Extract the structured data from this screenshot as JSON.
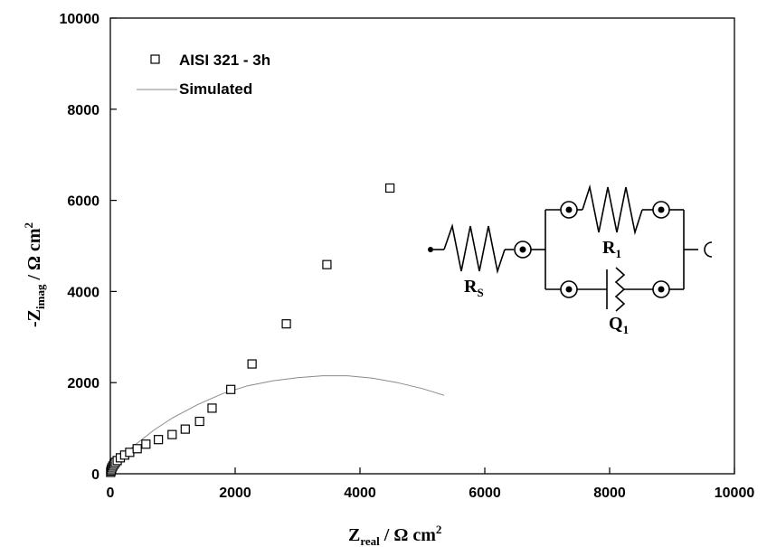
{
  "chart_data": {
    "type": "scatter",
    "xlabel": {
      "main": "Z",
      "sub": "real",
      "unit": " / Ω cm",
      "sup": "2"
    },
    "ylabel": {
      "main": "-Z",
      "sub": "imag",
      "unit": " / Ω cm",
      "sup": "2"
    },
    "xlim": [
      0,
      10000
    ],
    "ylim": [
      0,
      10000
    ],
    "xticks": [
      0,
      2000,
      4000,
      6000,
      8000,
      10000
    ],
    "yticks": [
      0,
      2000,
      4000,
      6000,
      8000,
      10000
    ],
    "xtick_labels": [
      "0",
      "2000",
      "4000",
      "6000",
      "8000",
      "10000"
    ],
    "ytick_labels": [
      "0",
      "2000",
      "4000",
      "6000",
      "8000",
      "10000"
    ],
    "grid": false,
    "legend_position": "top-left",
    "series": [
      {
        "name": "AISI 321 - 3h",
        "marker": "open-square",
        "x": [
          5,
          10,
          15,
          25,
          40,
          60,
          80,
          110,
          160,
          230,
          310,
          430,
          570,
          770,
          990,
          1200,
          1430,
          1630,
          1930,
          2270,
          2820,
          3470,
          4480
        ],
        "y": [
          30,
          60,
          90,
          130,
          170,
          210,
          250,
          290,
          350,
          410,
          470,
          550,
          650,
          750,
          860,
          980,
          1150,
          1440,
          1850,
          2410,
          3290,
          4590,
          6270
        ]
      },
      {
        "name": "Simulated",
        "line": "thin-grey",
        "x": [
          0,
          50,
          100,
          200,
          400,
          700,
          1000,
          1400,
          1800,
          2200,
          2600,
          3000,
          3400,
          3800,
          4200,
          4600,
          5000,
          5350
        ],
        "y": [
          0,
          150,
          250,
          400,
          640,
          960,
          1230,
          1520,
          1760,
          1930,
          2040,
          2110,
          2150,
          2150,
          2100,
          2000,
          1870,
          1720
        ]
      }
    ],
    "inset_circuit": {
      "labels": [
        {
          "main": "R",
          "sub": "S"
        },
        {
          "main": "R",
          "sub": "1"
        },
        {
          "main": "Q",
          "sub": "1"
        }
      ]
    }
  }
}
